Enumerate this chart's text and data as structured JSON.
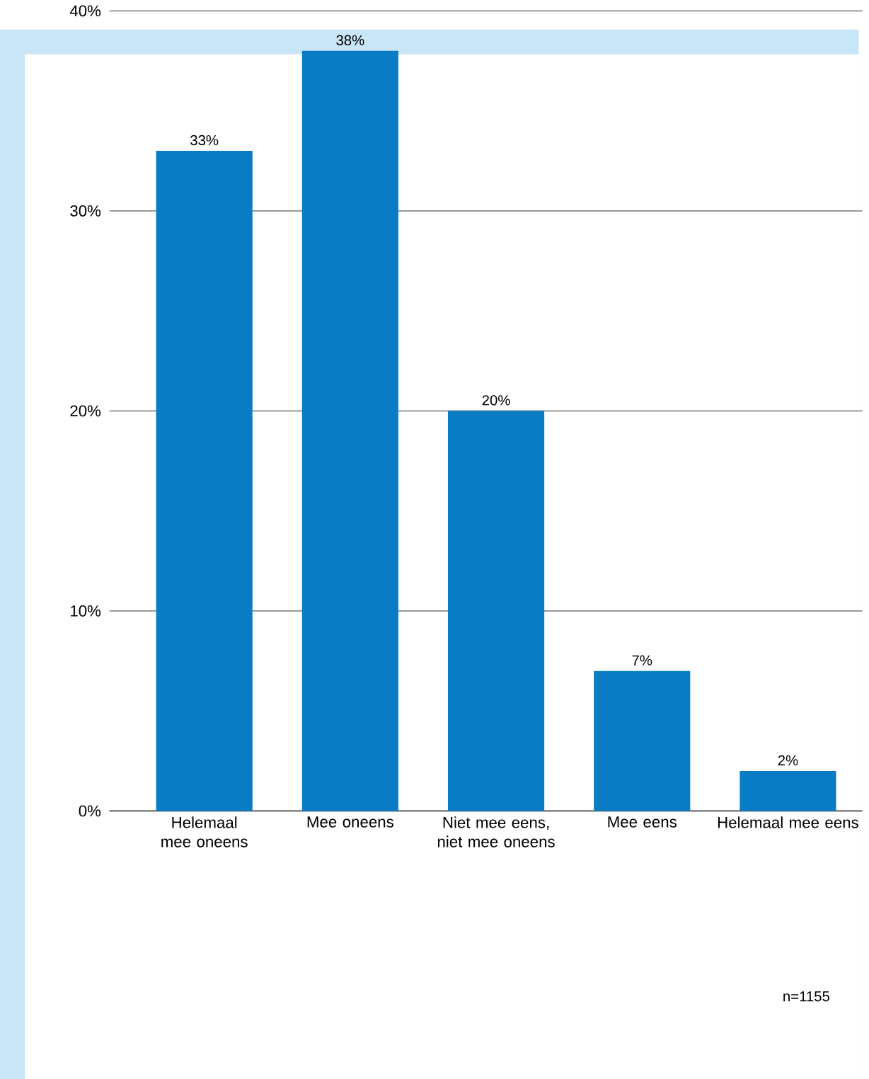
{
  "chart_data": {
    "type": "bar",
    "categories": [
      "Helemaal mee oneens",
      "Mee oneens",
      "Niet mee eens, niet mee oneens",
      "Mee eens",
      "Helemaal mee eens"
    ],
    "values": [
      33,
      38,
      20,
      7,
      2
    ],
    "value_labels": [
      "33%",
      "38%",
      "20%",
      "7%",
      "2%"
    ],
    "color": "#0a7cc5",
    "ylim": [
      0,
      40
    ],
    "yticks": [
      {
        "value": 0,
        "label": "0%"
      },
      {
        "value": 10,
        "label": "10%"
      },
      {
        "value": 20,
        "label": "20%"
      },
      {
        "value": 30,
        "label": "30%"
      },
      {
        "value": 40,
        "label": "40%"
      }
    ],
    "grid": "y",
    "annotations": [
      "n=1155"
    ]
  }
}
